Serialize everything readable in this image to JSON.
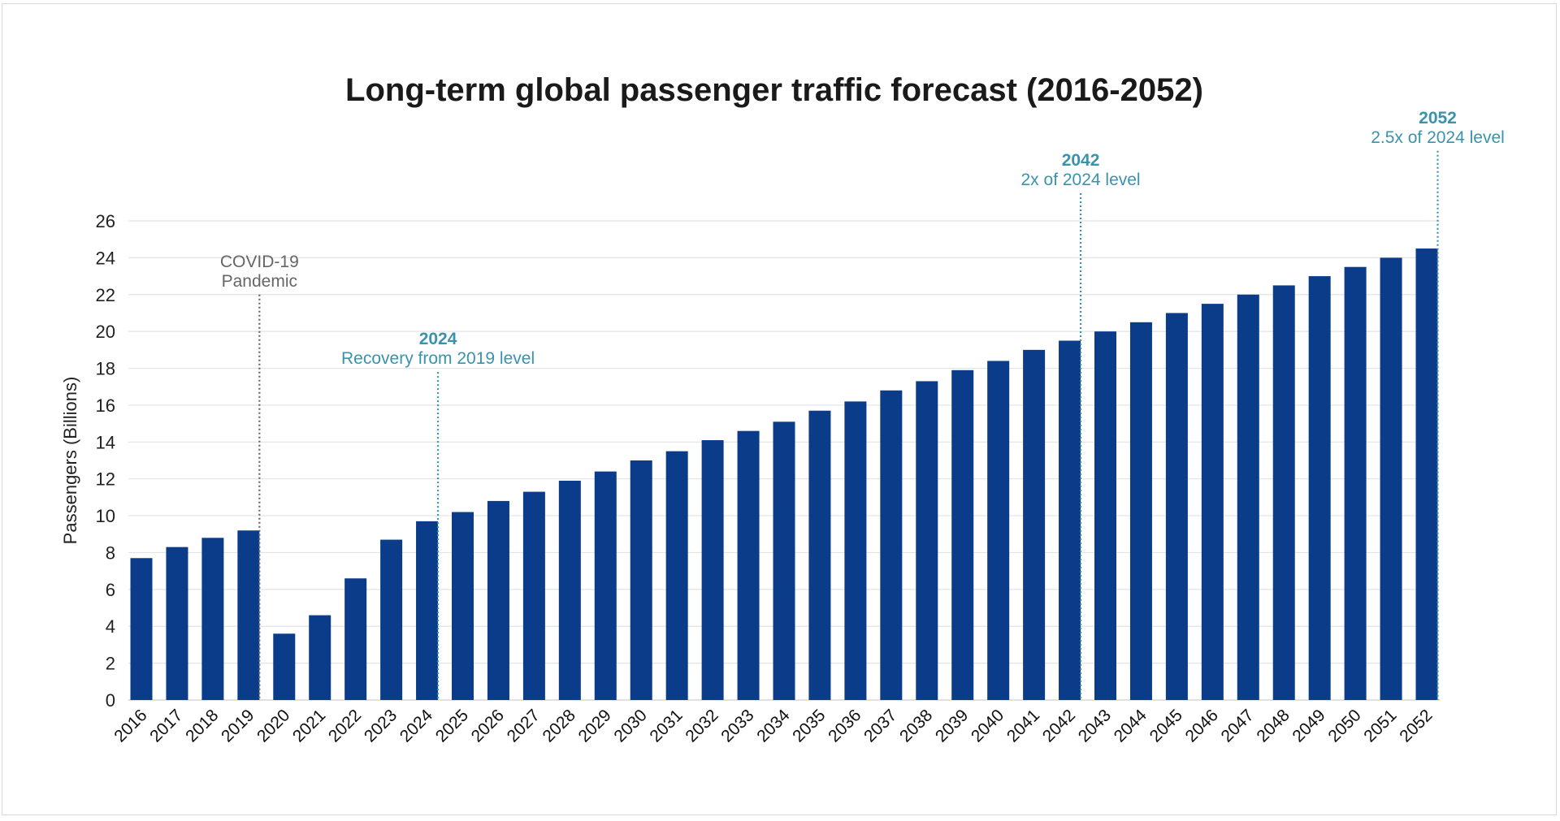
{
  "chart_data": {
    "type": "bar",
    "title": "Long-term global passenger traffic forecast (2016-2052)",
    "xlabel": "",
    "ylabel": "Passengers (Billions)",
    "ylim": [
      0,
      26
    ],
    "yticks": [
      0,
      2,
      4,
      6,
      8,
      10,
      12,
      14,
      16,
      18,
      20,
      22,
      24,
      26
    ],
    "grid": true,
    "categories": [
      "2016",
      "2017",
      "2018",
      "2019",
      "2020",
      "2021",
      "2022",
      "2023",
      "2024",
      "2025",
      "2026",
      "2027",
      "2028",
      "2029",
      "2030",
      "2031",
      "2032",
      "2033",
      "2034",
      "2035",
      "2036",
      "2037",
      "2038",
      "2039",
      "2040",
      "2041",
      "2042",
      "2043",
      "2044",
      "2045",
      "2046",
      "2047",
      "2048",
      "2049",
      "2050",
      "2051",
      "2052"
    ],
    "values": [
      7.7,
      8.3,
      8.8,
      9.2,
      3.6,
      4.6,
      6.6,
      8.7,
      9.7,
      10.2,
      10.8,
      11.3,
      11.9,
      12.4,
      13.0,
      13.5,
      14.1,
      14.6,
      15.1,
      15.7,
      16.2,
      16.8,
      17.3,
      17.9,
      18.4,
      19.0,
      19.5,
      20.0,
      20.5,
      21.0,
      21.5,
      22.0,
      22.5,
      23.0,
      23.5,
      24.0,
      24.5
    ],
    "bar_color": "#0a3c8a",
    "annotations": [
      {
        "year": "2019",
        "title": "",
        "lines": [
          "COVID-19",
          "Pandemic"
        ],
        "color": "#666666",
        "line_top": 22
      },
      {
        "year": "2024",
        "title": "2024",
        "lines": [
          "Recovery from 2019 level"
        ],
        "color": "#3a93ad",
        "line_top": 17.8
      },
      {
        "year": "2042",
        "title": "2042",
        "lines": [
          "2x of 2024 level"
        ],
        "color": "#3a93ad",
        "line_top": 27.5
      },
      {
        "year": "2052",
        "title": "2052",
        "lines": [
          "2.5x of 2024 level"
        ],
        "color": "#3a93ad",
        "line_top": 29.8
      }
    ]
  }
}
